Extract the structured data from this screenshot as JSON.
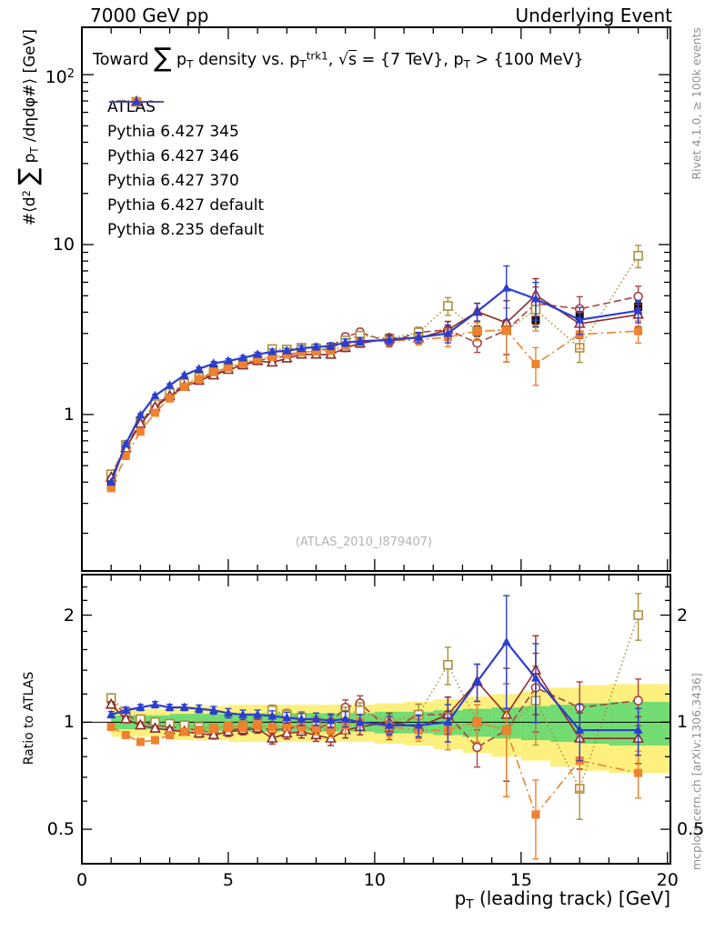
{
  "header": {
    "left": "7000 GeV pp",
    "right": "Underlying Event"
  },
  "side_notes": {
    "top_right": "Rivet 4.1.0, ≥ 100k events",
    "bottom_right": "mcplots.cern.ch [arXiv:1306.3436]"
  },
  "chart_data": {
    "type": "line",
    "title": "Toward ∑ p_{T} density vs. p_{T}^{trk1}, √s = {7 TeV}, p_{T} > {100 MeV}",
    "xlabel": "p_{T} (leading track) [GeV]",
    "ylabel": "#⟨d^{2} ∑ p_{T} /dηdφ#⟩ [GeV]",
    "ratio_label": "Ratio to ATLAS",
    "watermark": "(ATLAS_2010_I879407)",
    "x": [
      1,
      1.5,
      2,
      2.5,
      3,
      3.5,
      4,
      4.5,
      5,
      5.5,
      6,
      6.5,
      7,
      7.5,
      8,
      8.5,
      9,
      9.5,
      10.5,
      11.5,
      12.5,
      13.5,
      14.5,
      15.5,
      17,
      19
    ],
    "series": [
      {
        "name": "ATLAS",
        "color": "#111111",
        "marker": "square-filled",
        "line": "none",
        "values": [
          0.38,
          0.62,
          0.9,
          1.15,
          1.35,
          1.55,
          1.7,
          1.85,
          1.95,
          2.05,
          2.15,
          2.25,
          2.3,
          2.4,
          2.45,
          2.5,
          2.6,
          2.7,
          2.8,
          2.9,
          3.0,
          3.1,
          3.3,
          3.6,
          3.8,
          4.3
        ],
        "err_frac": [
          0.03,
          0.03,
          0.03,
          0.03,
          0.03,
          0.03,
          0.03,
          0.03,
          0.03,
          0.03,
          0.03,
          0.03,
          0.03,
          0.03,
          0.03,
          0.03,
          0.03,
          0.03,
          0.04,
          0.05,
          0.06,
          0.07,
          0.08,
          0.09,
          0.08,
          0.07
        ]
      },
      {
        "name": "Pythia 6.427 345",
        "color": "#a94442",
        "marker": "circle-open",
        "line": "dashed",
        "ratio": [
          1.15,
          1.05,
          1.0,
          0.98,
          0.97,
          0.96,
          0.95,
          0.93,
          0.95,
          0.96,
          0.97,
          0.95,
          0.96,
          0.97,
          0.95,
          1.0,
          1.1,
          1.13,
          0.95,
          1.05,
          1.05,
          0.85,
          0.95,
          1.25,
          1.1,
          1.15
        ]
      },
      {
        "name": "Pythia 6.427 346",
        "color": "#a8923d",
        "marker": "square-open",
        "line": "dotted",
        "ratio": [
          1.17,
          1.07,
          1.02,
          1.0,
          0.99,
          0.98,
          0.97,
          0.96,
          0.97,
          0.98,
          1.0,
          1.08,
          1.05,
          1.03,
          1.0,
          0.97,
          1.05,
          1.08,
          1.0,
          1.05,
          1.45,
          1.0,
          0.95,
          1.15,
          0.65,
          2.0
        ]
      },
      {
        "name": "Pythia 6.427 370",
        "color": "#8f2b2b",
        "marker": "triangle-open",
        "line": "solid",
        "ratio": [
          1.12,
          1.02,
          0.98,
          0.96,
          0.95,
          0.94,
          0.93,
          0.92,
          0.94,
          0.95,
          0.96,
          0.9,
          0.93,
          0.94,
          0.92,
          0.9,
          0.95,
          0.97,
          1.0,
          0.97,
          1.05,
          1.3,
          1.05,
          1.4,
          0.9,
          0.9
        ]
      },
      {
        "name": "Pythia 6.427 default",
        "color": "#f0812e",
        "marker": "square-filled",
        "line": "dashdot",
        "ratio": [
          0.97,
          0.92,
          0.88,
          0.89,
          0.92,
          0.94,
          0.95,
          0.96,
          0.97,
          0.97,
          0.98,
          0.97,
          0.98,
          0.97,
          0.96,
          0.95,
          0.98,
          1.0,
          0.97,
          0.95,
          0.95,
          1.0,
          0.95,
          0.55,
          0.78,
          0.72
        ]
      },
      {
        "name": "Pythia 8.235 default",
        "color": "#2b3fcf",
        "marker": "triangle-filled",
        "line": "solid",
        "ratio": [
          1.05,
          1.08,
          1.1,
          1.12,
          1.1,
          1.1,
          1.09,
          1.08,
          1.06,
          1.05,
          1.05,
          1.04,
          1.03,
          1.02,
          1.02,
          1.01,
          1.02,
          1.0,
          0.98,
          0.98,
          1.0,
          1.3,
          1.68,
          1.33,
          0.95,
          0.95
        ]
      }
    ],
    "model_err_frac": [
      0.02,
      0.02,
      0.02,
      0.02,
      0.02,
      0.02,
      0.025,
      0.025,
      0.03,
      0.03,
      0.03,
      0.035,
      0.035,
      0.04,
      0.04,
      0.045,
      0.05,
      0.05,
      0.06,
      0.07,
      0.12,
      0.12,
      0.35,
      0.25,
      0.18,
      0.15
    ],
    "axes": {
      "x": {
        "min": 0,
        "max": 20.1,
        "major_ticks": [
          0,
          5,
          10,
          15,
          20
        ],
        "minor_step": 1,
        "major_labels": [
          "0",
          "5",
          "10",
          "15",
          "20"
        ]
      },
      "y_main": {
        "scale": "log",
        "min": 0.12,
        "max": 190,
        "major_ticks": [
          1,
          10,
          100
        ],
        "labels": [
          "1",
          "10",
          "10^{2}"
        ]
      },
      "y_ratio": {
        "scale": "log",
        "min": 0.4,
        "max": 2.6,
        "major_ticks": [
          0.5,
          1,
          2
        ],
        "labels": [
          "0.5",
          "1",
          "2"
        ],
        "minor_ticks": [
          0.4,
          0.6,
          0.7,
          0.8,
          0.9,
          1.2,
          1.4,
          1.6,
          1.8,
          2.2,
          2.4
        ]
      }
    },
    "bands": {
      "x_edges": [
        1,
        3,
        5,
        7,
        9,
        10,
        11,
        12,
        13,
        14,
        15,
        16,
        17,
        18,
        19,
        20.1
      ],
      "yellow_halfwidth": [
        0.09,
        0.11,
        0.12,
        0.12,
        0.12,
        0.13,
        0.14,
        0.16,
        0.18,
        0.2,
        0.22,
        0.25,
        0.27,
        0.28,
        0.28
      ],
      "green_halfwidth": [
        0.045,
        0.055,
        0.06,
        0.06,
        0.06,
        0.07,
        0.07,
        0.08,
        0.09,
        0.1,
        0.11,
        0.12,
        0.13,
        0.14,
        0.14
      ],
      "yellow_color": "#fdf07e",
      "green_color": "#72db72"
    }
  }
}
